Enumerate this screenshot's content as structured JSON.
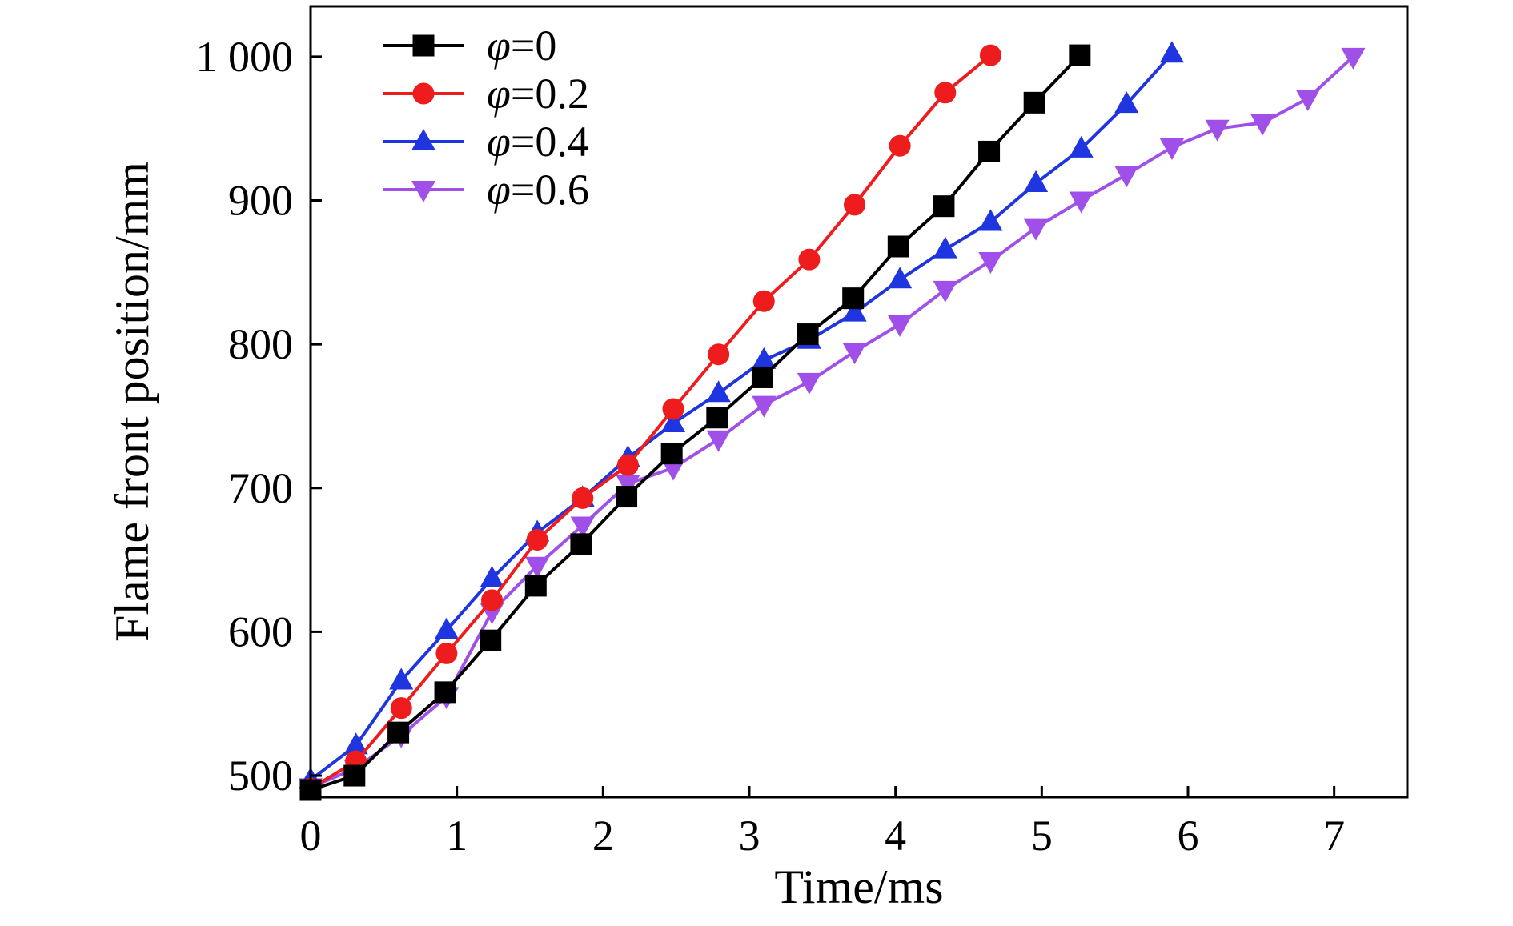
{
  "chart_data": {
    "type": "line",
    "xlabel": "Time/ms",
    "ylabel": "Flame front position/mm",
    "xlim": [
      0,
      7.5
    ],
    "ylim": [
      485,
      1035
    ],
    "xticks": [
      0,
      1,
      2,
      3,
      4,
      5,
      6,
      7
    ],
    "xtick_labels": [
      "0",
      "1",
      "2",
      "3",
      "4",
      "5",
      "6",
      "7"
    ],
    "yticks": [
      500,
      600,
      700,
      800,
      900,
      1000
    ],
    "ytick_labels": [
      "500",
      "600",
      "700",
      "800",
      "900",
      "1 000"
    ],
    "grid": false,
    "legend_position": "top-left",
    "series": [
      {
        "name_symbol": "φ",
        "name_value": "=0",
        "color": "#000000",
        "marker": "square",
        "x": [
          0,
          0.3,
          0.6,
          0.92,
          1.23,
          1.54,
          1.85,
          2.16,
          2.47,
          2.78,
          3.09,
          3.4,
          3.71,
          4.02,
          4.33,
          4.64,
          4.95,
          5.26
        ],
        "y": [
          490,
          500,
          530,
          558,
          594,
          632,
          661,
          694,
          724,
          749,
          777,
          807,
          832,
          868,
          896,
          934,
          968,
          1001
        ]
      },
      {
        "name_symbol": "φ",
        "name_value": "=0.2",
        "color": "#ee1c1c",
        "marker": "circle",
        "x": [
          0,
          0.31,
          0.62,
          0.93,
          1.24,
          1.55,
          1.86,
          2.17,
          2.48,
          2.79,
          3.1,
          3.41,
          3.72,
          4.03,
          4.34,
          4.65
        ],
        "y": [
          491,
          510,
          547,
          585,
          622,
          664,
          693,
          716,
          755,
          793,
          830,
          859,
          897,
          938,
          975,
          1001
        ]
      },
      {
        "name_symbol": "φ",
        "name_value": "=0.4",
        "color": "#1f35e0",
        "marker": "triangle-up",
        "x": [
          0,
          0.31,
          0.62,
          0.93,
          1.24,
          1.55,
          1.86,
          2.17,
          2.48,
          2.79,
          3.1,
          3.41,
          3.72,
          4.03,
          4.34,
          4.65,
          4.96,
          5.27,
          5.58,
          5.89
        ],
        "y": [
          497,
          521,
          566,
          601,
          637,
          669,
          693,
          721,
          745,
          766,
          789,
          803,
          822,
          845,
          866,
          885,
          912,
          936,
          967,
          1002
        ]
      },
      {
        "name_symbol": "φ",
        "name_value": "=0.6",
        "color": "#a050e8",
        "marker": "triangle-down",
        "x": [
          0,
          0.31,
          0.62,
          0.93,
          1.24,
          1.55,
          1.86,
          2.17,
          2.48,
          2.79,
          3.1,
          3.41,
          3.72,
          4.03,
          4.34,
          4.65,
          4.96,
          5.27,
          5.58,
          5.89,
          6.2,
          6.51,
          6.82,
          7.13
        ],
        "y": [
          492,
          505,
          528,
          555,
          614,
          646,
          674,
          703,
          714,
          734,
          758,
          774,
          795,
          814,
          838,
          858,
          881,
          900,
          918,
          937,
          950,
          954,
          971,
          1000
        ]
      }
    ]
  }
}
